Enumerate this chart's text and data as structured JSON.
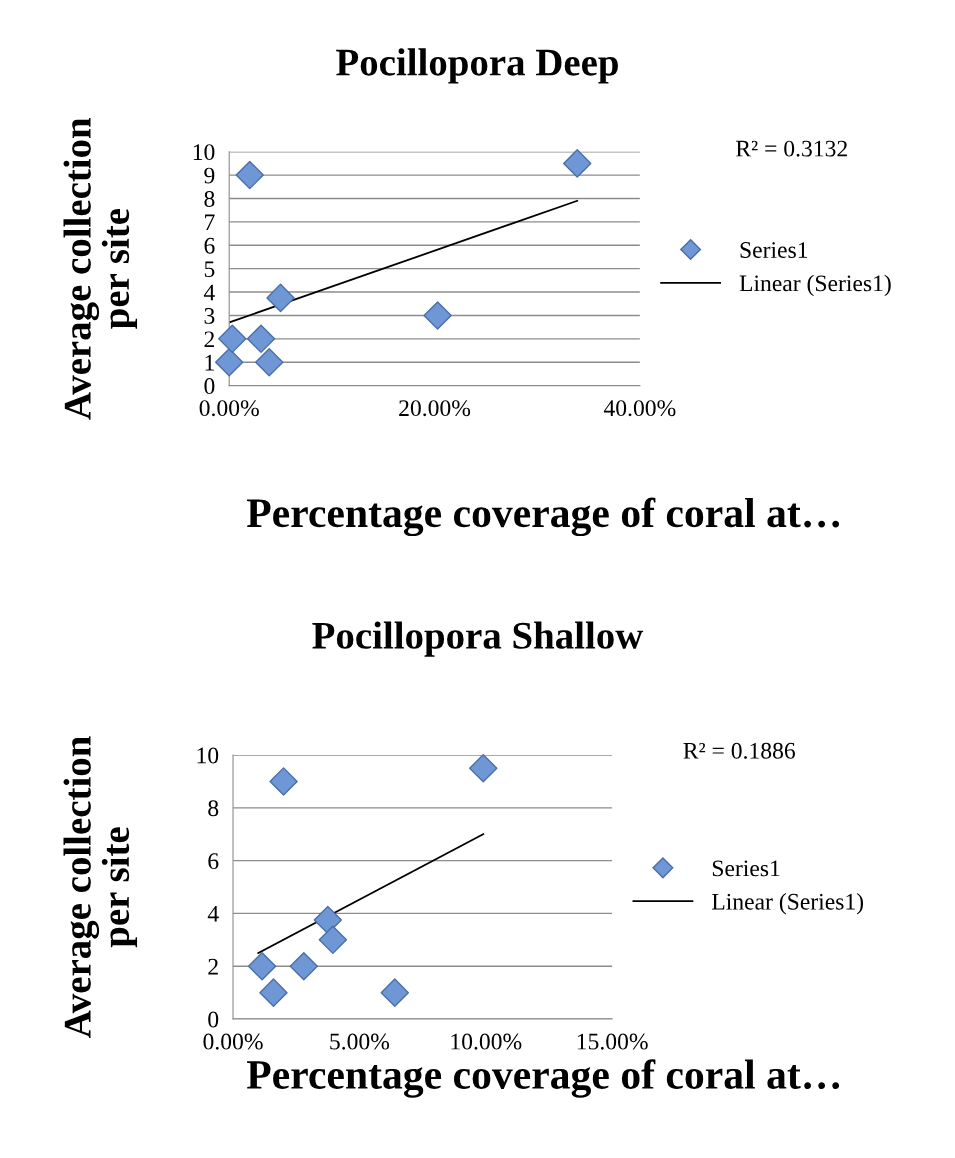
{
  "chart_data": [
    {
      "type": "scatter",
      "title": "Pocillopora Deep",
      "xlabel": "Percentage coverage of coral at…",
      "ylabel": "Average collection\nper site",
      "annotations": [
        "R² = 0.3132"
      ],
      "series": [
        {
          "name": "Series1",
          "type": "scatter",
          "marker": "diamond",
          "color": "#6f97d6",
          "x": [
            0,
            0.3,
            2.0,
            3.1,
            3.9,
            5.0,
            20.3,
            33.9
          ],
          "values": [
            1,
            2,
            9,
            2,
            1,
            3.75,
            3,
            9.5
          ]
        },
        {
          "name": "Linear (Series1)",
          "type": "line",
          "color": "#000000",
          "x": [
            0,
            33.9
          ],
          "values": [
            2.7,
            7.9
          ]
        }
      ],
      "xlim": [
        0,
        40
      ],
      "xticks": [
        {
          "value": 0,
          "label": "0.00%"
        },
        {
          "value": 20,
          "label": "20.00%"
        },
        {
          "value": 40,
          "label": "40.00%"
        }
      ],
      "ylim": [
        0,
        10
      ],
      "yticks": [
        0,
        1,
        2,
        3,
        4,
        5,
        6,
        7,
        8,
        9,
        10
      ],
      "grid": "y",
      "legend": "right"
    },
    {
      "type": "scatter",
      "title": "Pocillopora Shallow",
      "xlabel": "Percentage coverage of coral at…",
      "ylabel": "Average collection\nper site",
      "annotations": [
        "R² = 0.1886"
      ],
      "series": [
        {
          "name": "Series1",
          "type": "scatter",
          "marker": "diamond",
          "color": "#6f97d6",
          "x": [
            1.15,
            1.6,
            2.0,
            2.8,
            3.75,
            3.95,
            6.4,
            9.9
          ],
          "values": [
            2,
            1,
            9,
            2,
            3.75,
            3,
            1,
            9.5
          ]
        },
        {
          "name": "Linear (Series1)",
          "type": "line",
          "color": "#000000",
          "x": [
            1.0,
            9.9
          ],
          "values": [
            2.5,
            7.0
          ]
        }
      ],
      "xlim": [
        0,
        15
      ],
      "xticks": [
        {
          "value": 0,
          "label": "0.00%"
        },
        {
          "value": 5,
          "label": "5.00%"
        },
        {
          "value": 10,
          "label": "10.00%"
        },
        {
          "value": 15,
          "label": "15.00%"
        }
      ],
      "ylim": [
        0,
        10
      ],
      "yticks": [
        0,
        2,
        4,
        6,
        8,
        10
      ],
      "grid": "y",
      "legend": "right"
    }
  ]
}
